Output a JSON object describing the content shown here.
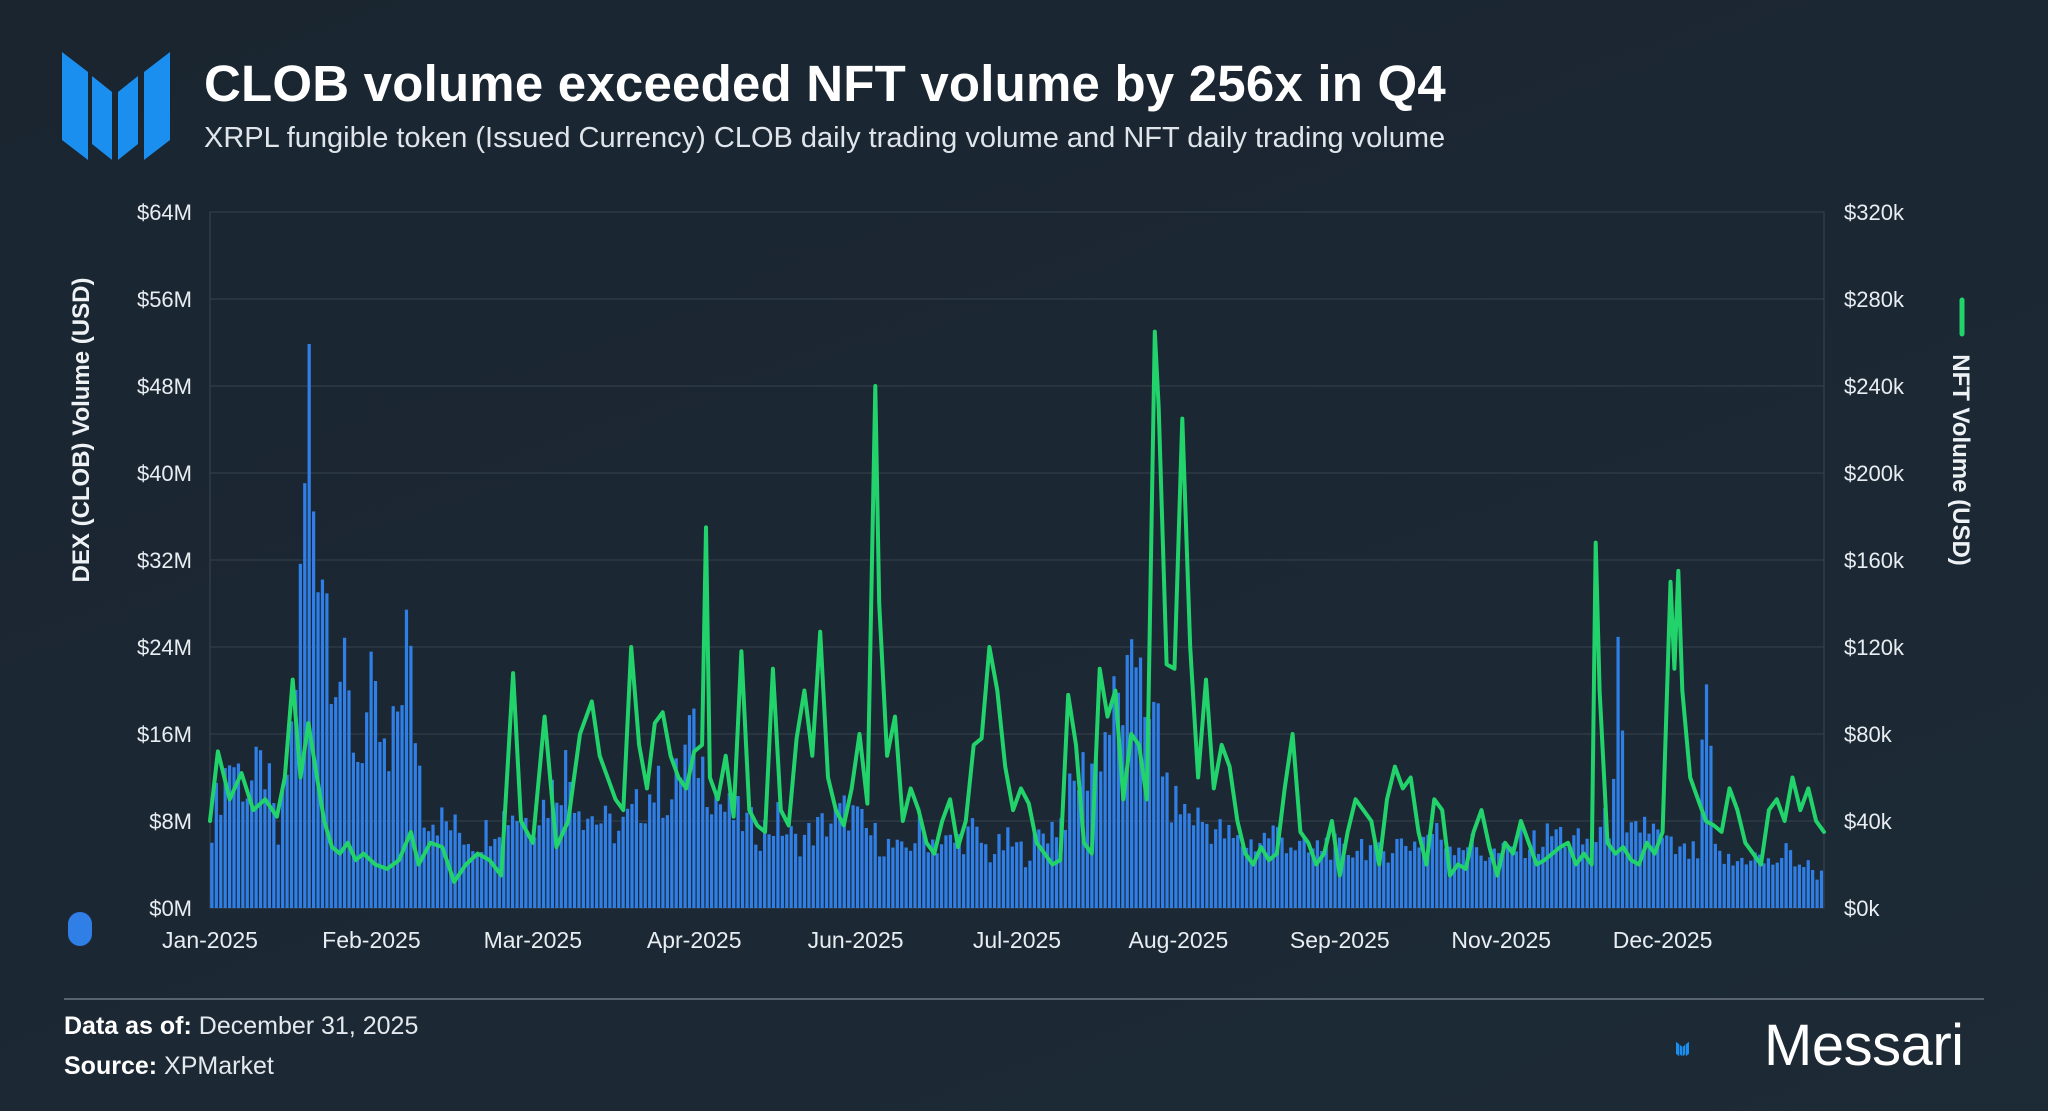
{
  "header": {
    "title": "CLOB volume exceeded NFT volume by 256x in Q4",
    "subtitle": "XRPL fungible token (Issued Currency) CLOB daily trading volume and NFT daily trading volume"
  },
  "footer": {
    "data_as_of_label": "Data as of:",
    "data_as_of_value": "December 31, 2025",
    "source_label": "Source:",
    "source_value": "XPMarket",
    "brand": "Messari"
  },
  "colors": {
    "clob": "#2f7fe6",
    "nft": "#22d36b",
    "brand": "#1a8ff0"
  },
  "chart_data": {
    "type": "bar+line",
    "title": "CLOB volume exceeded NFT volume by 256x in Q4",
    "subtitle": "XRPL fungible token (Issued Currency) CLOB daily trading volume and NFT daily trading volume",
    "x_tick_labels": [
      "Jan-2025",
      "Feb-2025",
      "Mar-2025",
      "Apr-2025",
      "Jun-2025",
      "Jul-2025",
      "Aug-2025",
      "Sep-2025",
      "Nov-2025",
      "Dec-2025"
    ],
    "y_left": {
      "label": "DEX (CLOB) Volume (USD)",
      "unit": "M",
      "ylim": [
        0,
        64
      ],
      "ticks": [
        0,
        8,
        16,
        24,
        32,
        40,
        48,
        56,
        64
      ],
      "tick_labels": [
        "$0M",
        "$8M",
        "$16M",
        "$24M",
        "$32M",
        "$40M",
        "$48M",
        "$56M",
        "$64M"
      ]
    },
    "y_right": {
      "label": "NFT Volume (USD)",
      "unit": "k",
      "ylim": [
        0,
        320
      ],
      "ticks": [
        0,
        40,
        80,
        120,
        160,
        200,
        240,
        280,
        320
      ],
      "tick_labels": [
        "$0k",
        "$40k",
        "$80k",
        "$120k",
        "$160k",
        "$200k",
        "$240k",
        "$280k",
        "$320k"
      ]
    },
    "x_days": 365,
    "grid": true,
    "series": [
      {
        "name": "DEX (CLOB) Volume (USD)",
        "type": "bar",
        "axis": "left",
        "unit": "$M per day",
        "keyframes": [
          [
            0,
            8
          ],
          [
            4,
            14
          ],
          [
            8,
            11
          ],
          [
            12,
            13
          ],
          [
            15,
            6
          ],
          [
            18,
            16
          ],
          [
            20,
            28
          ],
          [
            22,
            48
          ],
          [
            23,
            38
          ],
          [
            25,
            33
          ],
          [
            27,
            25
          ],
          [
            30,
            20
          ],
          [
            33,
            14
          ],
          [
            36,
            19
          ],
          [
            40,
            12
          ],
          [
            44,
            25
          ],
          [
            48,
            9
          ],
          [
            52,
            8
          ],
          [
            56,
            7
          ],
          [
            60,
            6
          ],
          [
            64,
            8
          ],
          [
            68,
            9
          ],
          [
            72,
            8
          ],
          [
            76,
            10
          ],
          [
            80,
            13
          ],
          [
            84,
            9
          ],
          [
            88,
            8
          ],
          [
            92,
            7
          ],
          [
            96,
            9
          ],
          [
            100,
            11
          ],
          [
            104,
            10
          ],
          [
            108,
            16
          ],
          [
            112,
            12
          ],
          [
            116,
            9
          ],
          [
            120,
            8
          ],
          [
            124,
            7
          ],
          [
            128,
            8
          ],
          [
            132,
            6
          ],
          [
            136,
            7
          ],
          [
            140,
            8
          ],
          [
            144,
            9
          ],
          [
            148,
            7
          ],
          [
            152,
            6
          ],
          [
            156,
            5
          ],
          [
            160,
            7
          ],
          [
            164,
            6
          ],
          [
            168,
            6
          ],
          [
            172,
            7
          ],
          [
            176,
            5
          ],
          [
            180,
            6
          ],
          [
            184,
            5
          ],
          [
            188,
            7
          ],
          [
            192,
            8
          ],
          [
            196,
            12
          ],
          [
            200,
            14
          ],
          [
            204,
            18
          ],
          [
            208,
            20
          ],
          [
            210,
            26
          ],
          [
            212,
            15
          ],
          [
            214,
            18
          ],
          [
            216,
            10
          ],
          [
            220,
            9
          ],
          [
            224,
            8
          ],
          [
            228,
            7
          ],
          [
            232,
            6
          ],
          [
            236,
            6
          ],
          [
            240,
            7
          ],
          [
            244,
            6
          ],
          [
            248,
            5
          ],
          [
            252,
            6
          ],
          [
            256,
            5
          ],
          [
            260,
            6
          ],
          [
            264,
            5
          ],
          [
            268,
            6
          ],
          [
            272,
            6
          ],
          [
            276,
            7
          ],
          [
            280,
            6
          ],
          [
            284,
            6
          ],
          [
            288,
            5
          ],
          [
            292,
            5
          ],
          [
            296,
            6
          ],
          [
            300,
            6
          ],
          [
            304,
            7
          ],
          [
            308,
            6
          ],
          [
            312,
            6
          ],
          [
            316,
            8
          ],
          [
            318,
            21
          ],
          [
            320,
            6
          ],
          [
            324,
            8
          ],
          [
            328,
            6
          ],
          [
            332,
            5
          ],
          [
            336,
            5
          ],
          [
            338,
            20
          ],
          [
            340,
            5
          ],
          [
            344,
            4
          ],
          [
            348,
            5
          ],
          [
            352,
            4
          ],
          [
            356,
            5
          ],
          [
            360,
            4
          ],
          [
            364,
            3
          ]
        ]
      },
      {
        "name": "NFT Volume (USD)",
        "type": "line",
        "axis": "right",
        "unit": "$k per day",
        "keyframes": [
          [
            0,
            40
          ],
          [
            2,
            72
          ],
          [
            5,
            50
          ],
          [
            8,
            62
          ],
          [
            11,
            45
          ],
          [
            14,
            50
          ],
          [
            17,
            42
          ],
          [
            19,
            60
          ],
          [
            21,
            105
          ],
          [
            23,
            60
          ],
          [
            25,
            85
          ],
          [
            27,
            62
          ],
          [
            29,
            40
          ],
          [
            31,
            28
          ],
          [
            33,
            25
          ],
          [
            35,
            30
          ],
          [
            37,
            22
          ],
          [
            39,
            25
          ],
          [
            42,
            20
          ],
          [
            45,
            18
          ],
          [
            48,
            22
          ],
          [
            51,
            35
          ],
          [
            53,
            20
          ],
          [
            56,
            30
          ],
          [
            59,
            28
          ],
          [
            62,
            12
          ],
          [
            65,
            20
          ],
          [
            68,
            25
          ],
          [
            71,
            22
          ],
          [
            74,
            15
          ],
          [
            77,
            108
          ],
          [
            79,
            40
          ],
          [
            82,
            30
          ],
          [
            85,
            88
          ],
          [
            88,
            28
          ],
          [
            91,
            40
          ],
          [
            94,
            80
          ],
          [
            97,
            95
          ],
          [
            99,
            70
          ],
          [
            101,
            60
          ],
          [
            103,
            50
          ],
          [
            105,
            45
          ],
          [
            107,
            120
          ],
          [
            109,
            75
          ],
          [
            111,
            55
          ],
          [
            113,
            85
          ],
          [
            115,
            90
          ],
          [
            117,
            70
          ],
          [
            119,
            60
          ],
          [
            121,
            55
          ],
          [
            123,
            72
          ],
          [
            125,
            75
          ],
          [
            126,
            175
          ],
          [
            127,
            60
          ],
          [
            129,
            50
          ],
          [
            131,
            70
          ],
          [
            133,
            42
          ],
          [
            135,
            118
          ],
          [
            137,
            45
          ],
          [
            139,
            38
          ],
          [
            141,
            35
          ],
          [
            143,
            110
          ],
          [
            145,
            45
          ],
          [
            147,
            38
          ],
          [
            149,
            78
          ],
          [
            151,
            100
          ],
          [
            153,
            70
          ],
          [
            155,
            127
          ],
          [
            157,
            60
          ],
          [
            159,
            45
          ],
          [
            161,
            38
          ],
          [
            163,
            55
          ],
          [
            165,
            80
          ],
          [
            167,
            48
          ],
          [
            169,
            240
          ],
          [
            170,
            140
          ],
          [
            172,
            70
          ],
          [
            174,
            88
          ],
          [
            176,
            40
          ],
          [
            178,
            55
          ],
          [
            180,
            45
          ],
          [
            182,
            30
          ],
          [
            184,
            25
          ],
          [
            186,
            40
          ],
          [
            188,
            50
          ],
          [
            190,
            28
          ],
          [
            192,
            40
          ],
          [
            194,
            75
          ],
          [
            196,
            78
          ],
          [
            198,
            120
          ],
          [
            200,
            100
          ],
          [
            202,
            65
          ],
          [
            204,
            45
          ],
          [
            206,
            55
          ],
          [
            208,
            48
          ],
          [
            210,
            30
          ],
          [
            212,
            25
          ],
          [
            214,
            20
          ],
          [
            216,
            22
          ],
          [
            218,
            98
          ],
          [
            220,
            75
          ],
          [
            222,
            30
          ],
          [
            224,
            25
          ],
          [
            226,
            110
          ],
          [
            228,
            88
          ],
          [
            230,
            100
          ],
          [
            232,
            50
          ],
          [
            234,
            80
          ],
          [
            236,
            75
          ],
          [
            238,
            50
          ],
          [
            240,
            265
          ],
          [
            241,
            230
          ],
          [
            243,
            112
          ],
          [
            245,
            110
          ],
          [
            247,
            225
          ],
          [
            249,
            120
          ],
          [
            251,
            60
          ],
          [
            253,
            105
          ],
          [
            255,
            55
          ],
          [
            257,
            75
          ],
          [
            259,
            65
          ],
          [
            261,
            40
          ],
          [
            263,
            25
          ],
          [
            265,
            20
          ],
          [
            267,
            28
          ],
          [
            269,
            22
          ],
          [
            271,
            25
          ],
          [
            273,
            55
          ],
          [
            275,
            80
          ],
          [
            277,
            35
          ],
          [
            279,
            30
          ],
          [
            281,
            20
          ],
          [
            283,
            25
          ],
          [
            285,
            40
          ],
          [
            287,
            15
          ],
          [
            289,
            35
          ],
          [
            291,
            50
          ],
          [
            293,
            45
          ],
          [
            295,
            40
          ],
          [
            297,
            20
          ],
          [
            299,
            50
          ],
          [
            301,
            65
          ],
          [
            303,
            55
          ],
          [
            305,
            60
          ],
          [
            307,
            35
          ],
          [
            309,
            20
          ],
          [
            311,
            50
          ],
          [
            313,
            45
          ],
          [
            315,
            15
          ],
          [
            317,
            20
          ],
          [
            319,
            18
          ],
          [
            321,
            35
          ],
          [
            323,
            45
          ],
          [
            325,
            28
          ],
          [
            327,
            15
          ],
          [
            329,
            30
          ],
          [
            331,
            25
          ],
          [
            333,
            40
          ],
          [
            335,
            30
          ],
          [
            337,
            20
          ],
          [
            339,
            22
          ],
          [
            341,
            25
          ],
          [
            343,
            28
          ],
          [
            345,
            30
          ],
          [
            347,
            20
          ],
          [
            349,
            25
          ],
          [
            351,
            20
          ],
          [
            352,
            168
          ],
          [
            353,
            100
          ],
          [
            355,
            30
          ],
          [
            357,
            25
          ],
          [
            359,
            28
          ],
          [
            361,
            22
          ],
          [
            363,
            20
          ],
          [
            365,
            30
          ],
          [
            367,
            25
          ],
          [
            369,
            35
          ],
          [
            371,
            150
          ],
          [
            372,
            110
          ],
          [
            373,
            155
          ],
          [
            374,
            100
          ],
          [
            376,
            60
          ],
          [
            378,
            50
          ],
          [
            380,
            40
          ],
          [
            382,
            38
          ],
          [
            384,
            35
          ],
          [
            386,
            55
          ],
          [
            388,
            45
          ],
          [
            390,
            30
          ],
          [
            392,
            25
          ],
          [
            394,
            20
          ],
          [
            396,
            45
          ],
          [
            398,
            50
          ],
          [
            400,
            40
          ],
          [
            402,
            60
          ],
          [
            404,
            45
          ],
          [
            406,
            55
          ],
          [
            408,
            40
          ],
          [
            410,
            35
          ]
        ]
      }
    ],
    "legend": [
      {
        "name": "DEX (CLOB) Volume (USD)",
        "side": "left"
      },
      {
        "name": "NFT Volume (USD)",
        "side": "right"
      }
    ]
  }
}
